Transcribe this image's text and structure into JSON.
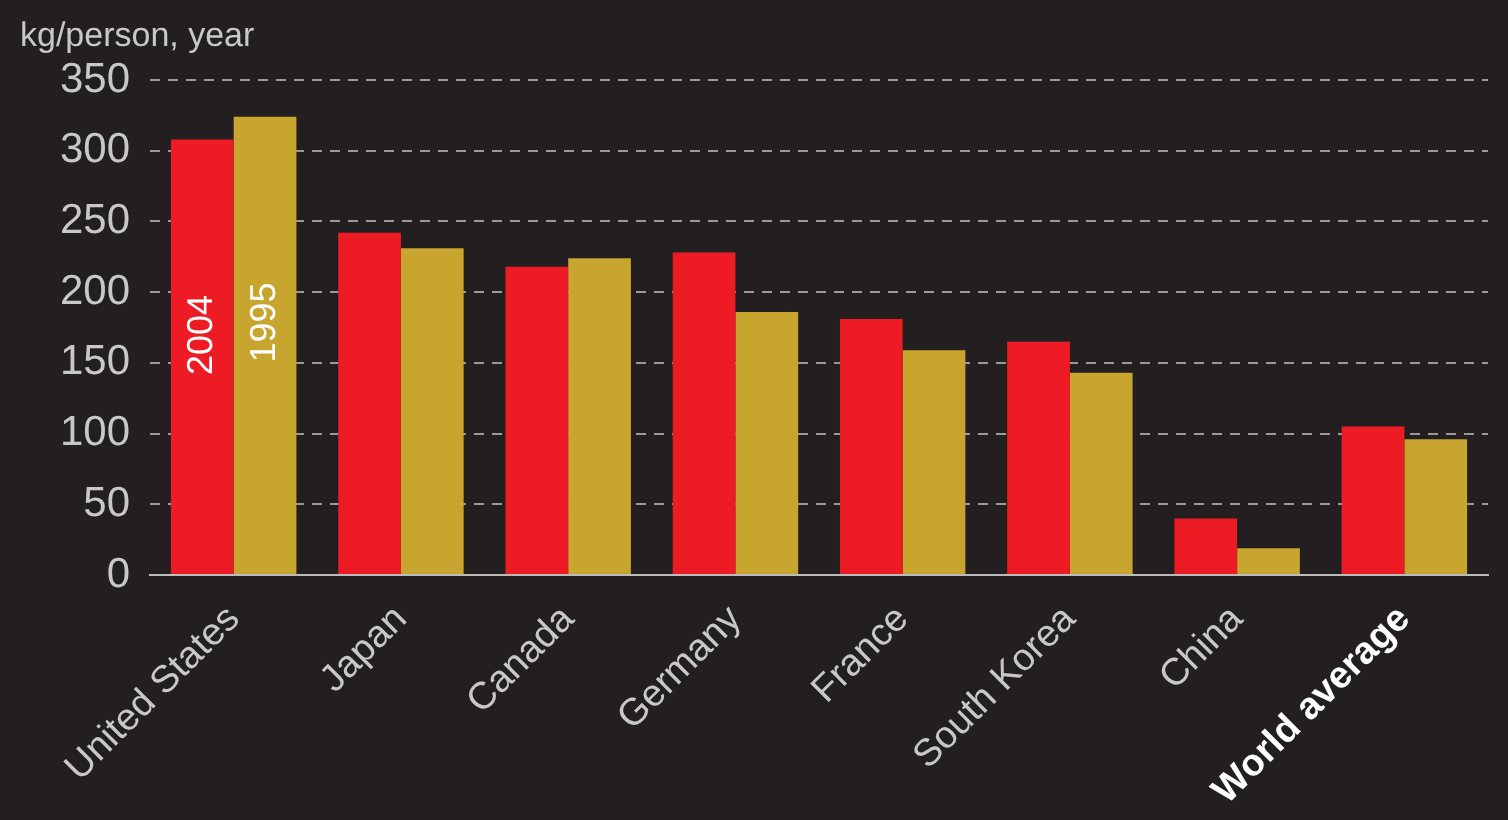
{
  "chart_data": {
    "type": "bar",
    "ylabel": "kg/person, year",
    "categories": [
      "United States",
      "Japan",
      "Canada",
      "Germany",
      "France",
      "South Korea",
      "China",
      "World average"
    ],
    "series": [
      {
        "name": "2004",
        "color": "#ed1c24",
        "values": [
          308,
          242,
          218,
          228,
          181,
          165,
          40,
          105
        ]
      },
      {
        "name": "1995",
        "color": "#c8a52e",
        "values": [
          324,
          231,
          224,
          186,
          159,
          143,
          19,
          96
        ]
      }
    ],
    "ylim": [
      0,
      350
    ],
    "yticks": [
      0,
      50,
      100,
      150,
      200,
      250,
      300,
      350
    ],
    "grid": "y",
    "legend": false
  }
}
